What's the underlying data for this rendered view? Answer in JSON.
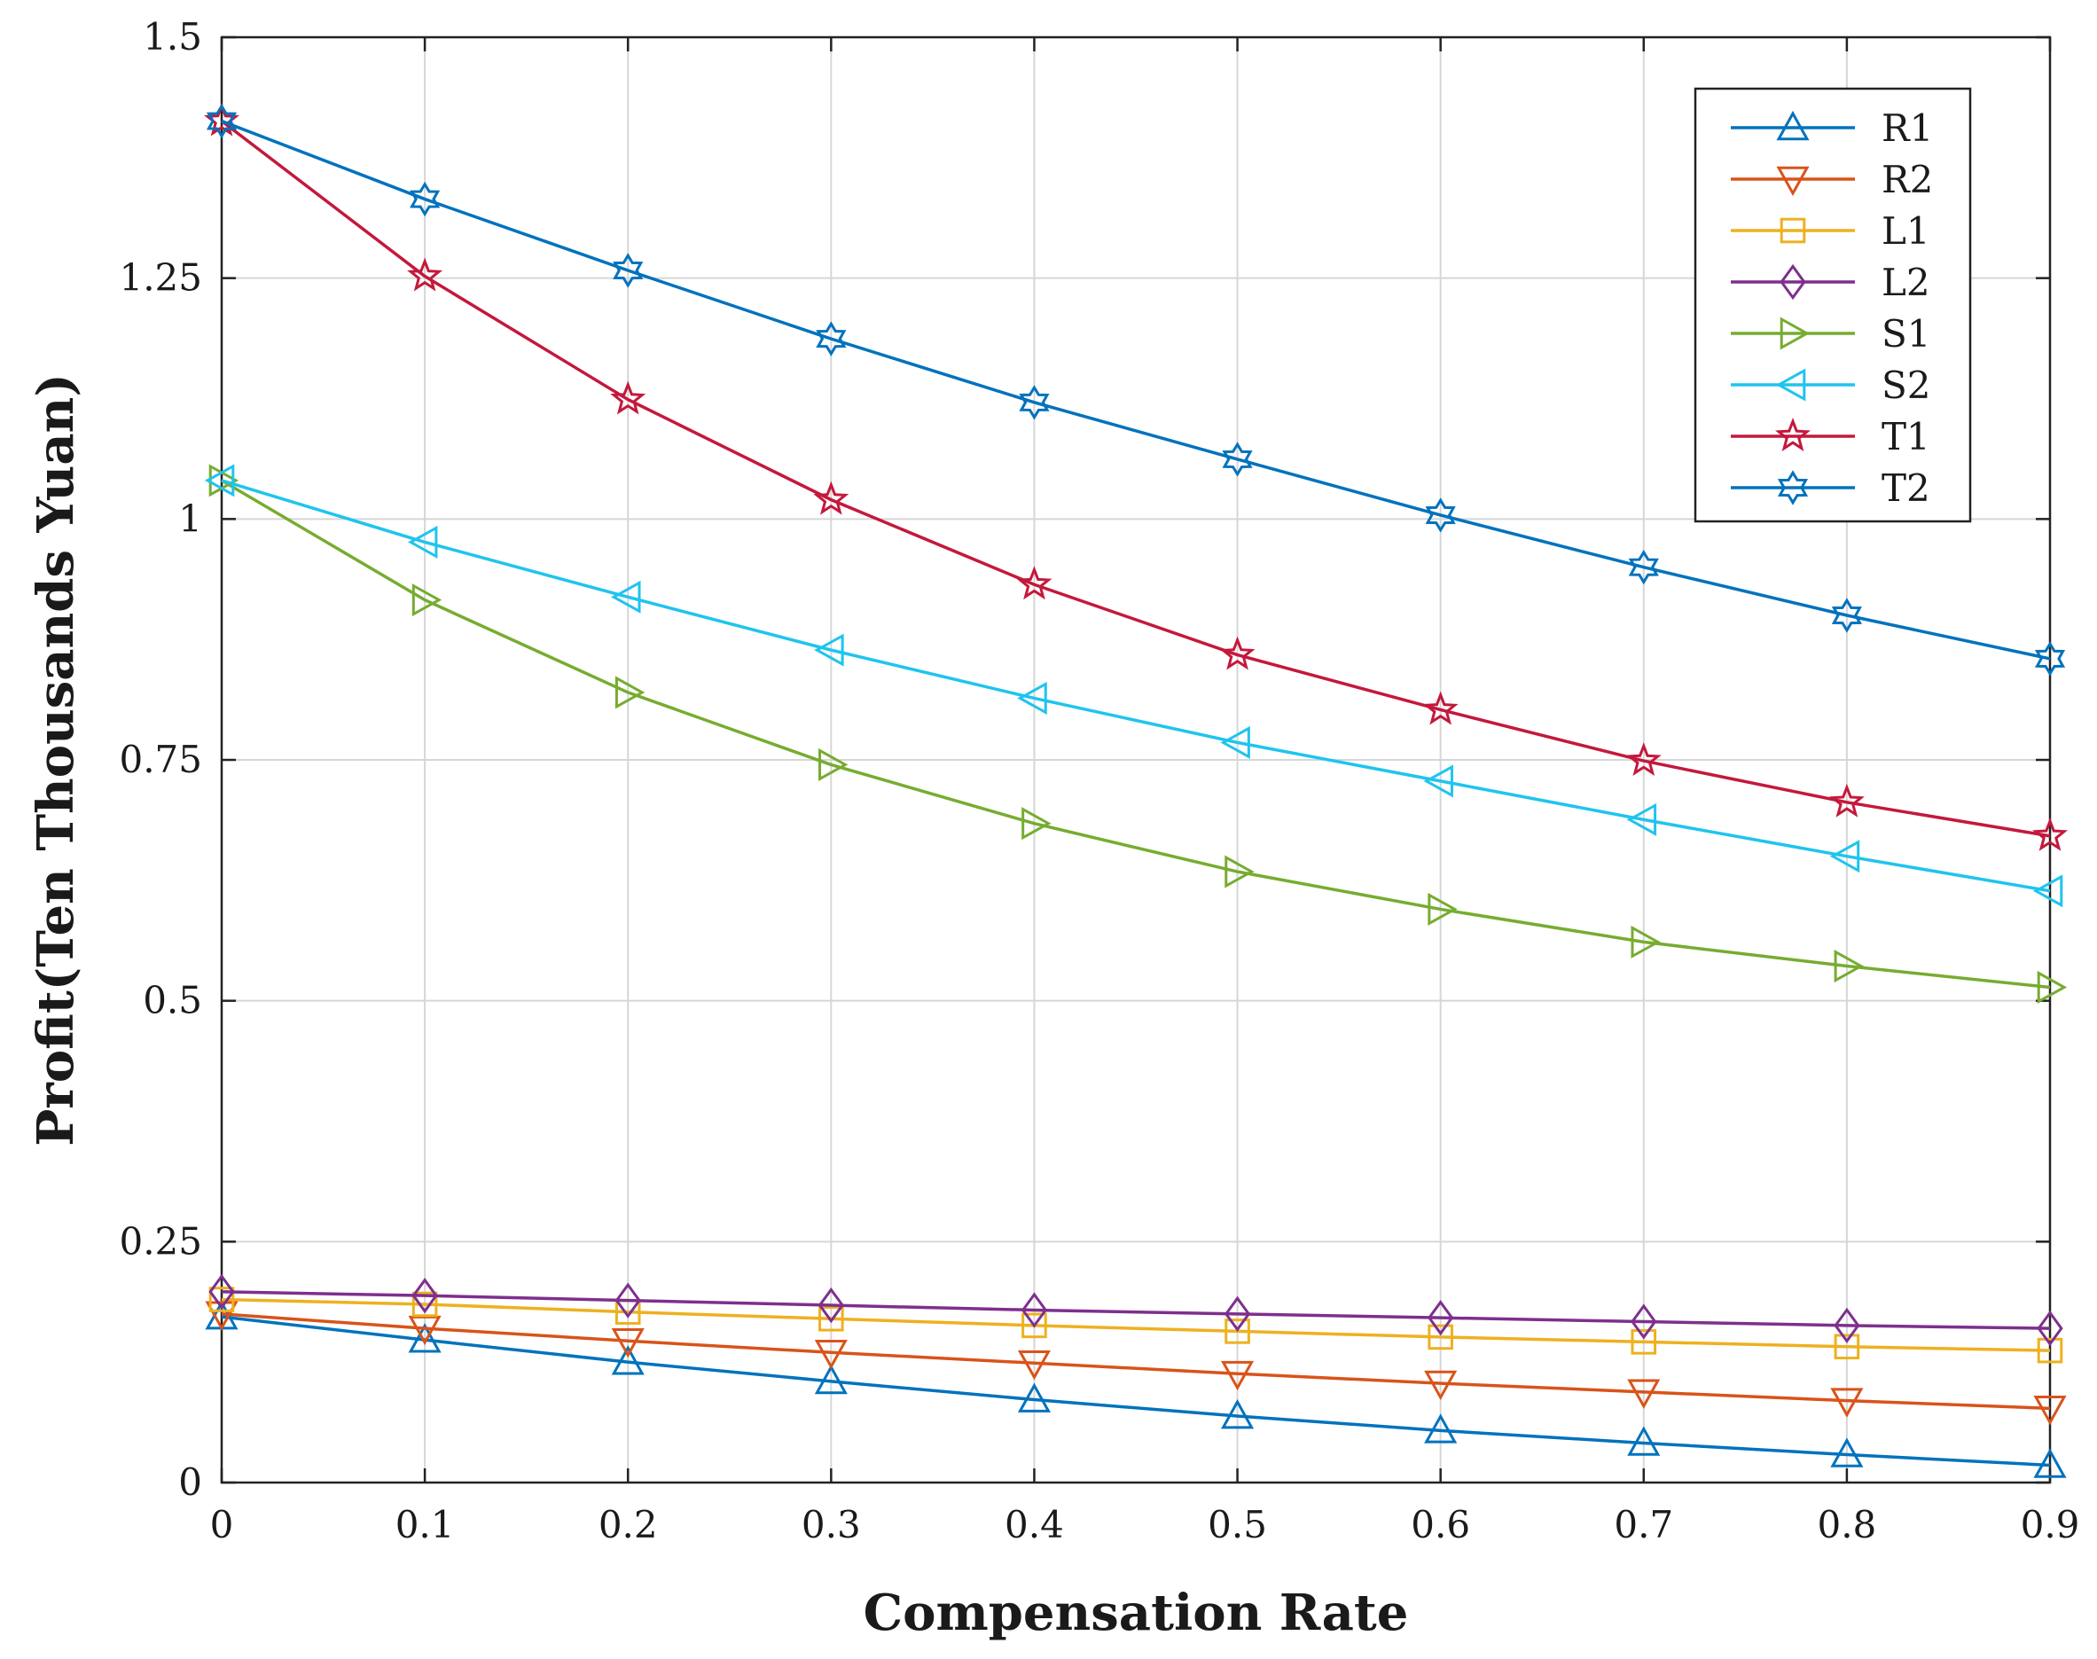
{
  "chart_data": {
    "type": "line",
    "title": "",
    "xlabel": "Compensation Rate",
    "ylabel": "Profit(Ten Thousands Yuan)",
    "x": [
      0,
      0.1,
      0.2,
      0.3,
      0.4,
      0.5,
      0.6,
      0.7,
      0.8,
      0.9
    ],
    "xlim": [
      0,
      0.9
    ],
    "ylim": [
      0,
      1.5
    ],
    "x_ticks": [
      0,
      0.1,
      0.2,
      0.3,
      0.4,
      0.5,
      0.6,
      0.7,
      0.8,
      0.9
    ],
    "x_tick_labels": [
      "0",
      "0.1",
      "0.2",
      "0.3",
      "0.4",
      "0.5",
      "0.6",
      "0.7",
      "0.8",
      "0.9"
    ],
    "y_ticks": [
      0,
      0.25,
      0.5,
      0.75,
      1,
      1.25,
      1.5
    ],
    "y_tick_labels": [
      "0",
      "0.25",
      "0.5",
      "0.75",
      "1",
      "1.25",
      "1.5"
    ],
    "grid": true,
    "legend_position": "top-right",
    "series": [
      {
        "name": "R1",
        "color": "#0072BD",
        "marker": "triangle-up",
        "values": [
          0.172,
          0.148,
          0.125,
          0.105,
          0.086,
          0.069,
          0.054,
          0.041,
          0.029,
          0.018
        ]
      },
      {
        "name": "R2",
        "color": "#D95319",
        "marker": "triangle-down",
        "values": [
          0.175,
          0.16,
          0.147,
          0.135,
          0.124,
          0.113,
          0.103,
          0.094,
          0.085,
          0.077
        ]
      },
      {
        "name": "L1",
        "color": "#EDB120",
        "marker": "square",
        "values": [
          0.19,
          0.185,
          0.177,
          0.17,
          0.163,
          0.157,
          0.151,
          0.146,
          0.141,
          0.137
        ]
      },
      {
        "name": "L2",
        "color": "#7E2F8E",
        "marker": "diamond",
        "values": [
          0.198,
          0.194,
          0.189,
          0.184,
          0.179,
          0.175,
          0.171,
          0.167,
          0.163,
          0.16
        ]
      },
      {
        "name": "S1",
        "color": "#77AC30",
        "marker": "triangle-right",
        "values": [
          1.04,
          0.916,
          0.82,
          0.745,
          0.684,
          0.634,
          0.595,
          0.561,
          0.536,
          0.514
        ]
      },
      {
        "name": "S2",
        "color": "#1FC4EE",
        "marker": "triangle-left",
        "values": [
          1.04,
          0.976,
          0.919,
          0.864,
          0.814,
          0.768,
          0.728,
          0.688,
          0.65,
          0.614
        ]
      },
      {
        "name": "T1",
        "color": "#C4183C",
        "marker": "star",
        "values": [
          1.413,
          1.252,
          1.124,
          1.02,
          0.932,
          0.859,
          0.802,
          0.749,
          0.706,
          0.671
        ]
      },
      {
        "name": "T2",
        "color": "#0072BD",
        "marker": "hexagram",
        "values": [
          1.413,
          1.332,
          1.258,
          1.187,
          1.121,
          1.062,
          1.004,
          0.95,
          0.9,
          0.855
        ]
      }
    ]
  }
}
